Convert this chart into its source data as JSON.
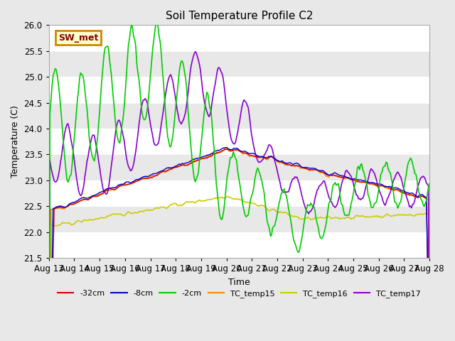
{
  "title": "Soil Temperature Profile C2",
  "xlabel": "Time",
  "ylabel": "Temperature (C)",
  "ylim": [
    21.5,
    26.0
  ],
  "bg_color": "#e8e8e8",
  "grid_color": "#ffffff",
  "annotation_text": "SW_met",
  "annotation_bg": "#ffffcc",
  "annotation_border": "#cc8800",
  "annotation_text_color": "#880000",
  "x_labels": [
    "Aug 13",
    "Aug 14",
    "Aug 15",
    "Aug 16",
    "Aug 17",
    "Aug 18",
    "Aug 19",
    "Aug 20",
    "Aug 21",
    "Aug 22",
    "Aug 23",
    "Aug 24",
    "Aug 25",
    "Aug 26",
    "Aug 27",
    "Aug 28"
  ],
  "yticks": [
    21.5,
    22.0,
    22.5,
    23.0,
    23.5,
    24.0,
    24.5,
    25.0,
    25.5,
    26.0
  ],
  "series_colors": {
    "-32cm": "#cc0000",
    "-8cm": "#0000cc",
    "-2cm": "#00cc00",
    "TC_temp15": "#ff8800",
    "TC_temp16": "#cccc00",
    "TC_temp17": "#8800cc"
  },
  "n_days": 15,
  "pts_per_day": 24
}
